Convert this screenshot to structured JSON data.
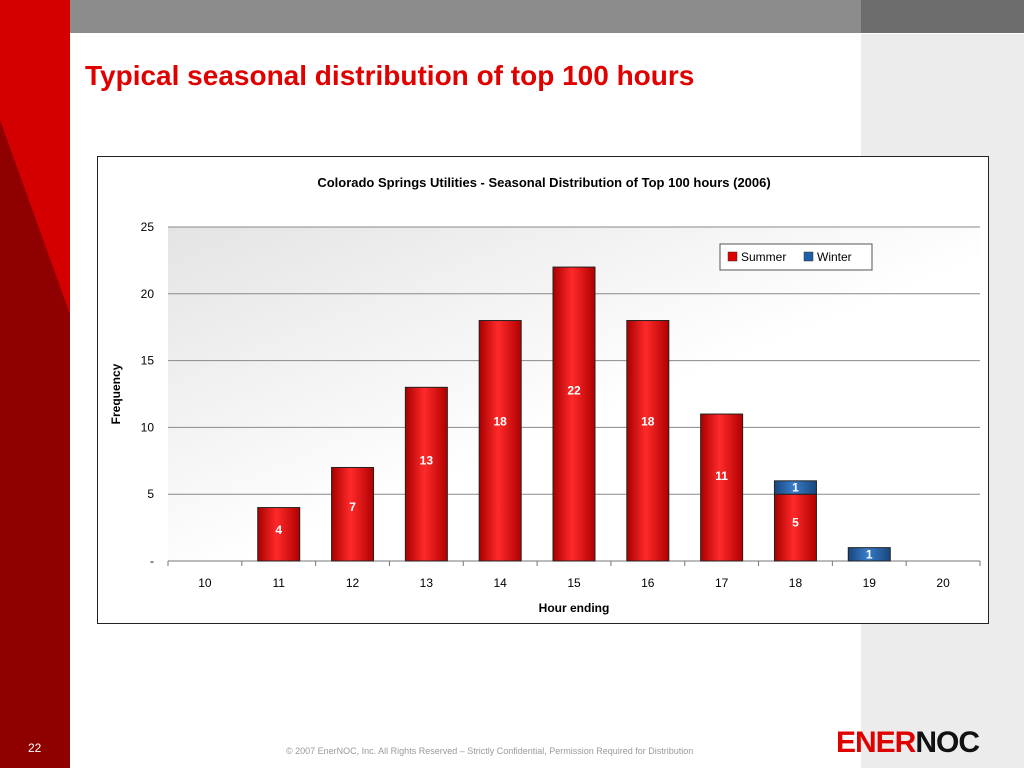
{
  "slide": {
    "title": "Typical seasonal distribution of top 100 hours",
    "page_number": "22",
    "footer": "© 2007 EnerNOC, Inc. All Rights Reserved – Strictly Confidential, Permission Required for Distribution",
    "logo": {
      "part1": "ENER",
      "part2": "NOC"
    }
  },
  "colors": {
    "brand_red": "#e00000",
    "dark_red": "#8f0000",
    "summer": "#e00000",
    "winter": "#1f5fa8",
    "band_gray": "#8c8c8c"
  },
  "chart_data": {
    "type": "bar",
    "stacked": true,
    "title": "Colorado Springs Utilities - Seasonal Distribution of Top 100 hours (2006)",
    "xlabel": "Hour ending",
    "ylabel": "Frequency",
    "categories": [
      "10",
      "11",
      "12",
      "13",
      "14",
      "15",
      "16",
      "17",
      "18",
      "19",
      "20"
    ],
    "series": [
      {
        "name": "Summer",
        "color": "#e00000",
        "values": [
          0,
          4,
          7,
          13,
          18,
          22,
          18,
          11,
          5,
          0,
          0
        ]
      },
      {
        "name": "Winter",
        "color": "#1f5fa8",
        "values": [
          0,
          0,
          0,
          0,
          0,
          0,
          0,
          0,
          1,
          1,
          0
        ]
      }
    ],
    "data_labels": {
      "Summer": [
        "",
        "4",
        "7",
        "13",
        "18",
        "22",
        "18",
        "11",
        "5",
        "",
        ""
      ],
      "Winter": [
        "",
        "",
        "",
        "",
        "",
        "",
        "",
        "",
        "1",
        "1",
        ""
      ]
    },
    "ylim": [
      0,
      25
    ],
    "yticks": [
      0,
      5,
      10,
      15,
      20,
      25
    ],
    "ytick_labels": [
      "-",
      "5",
      "10",
      "15",
      "20",
      "25"
    ],
    "grid": true,
    "legend_position": "top-right"
  }
}
